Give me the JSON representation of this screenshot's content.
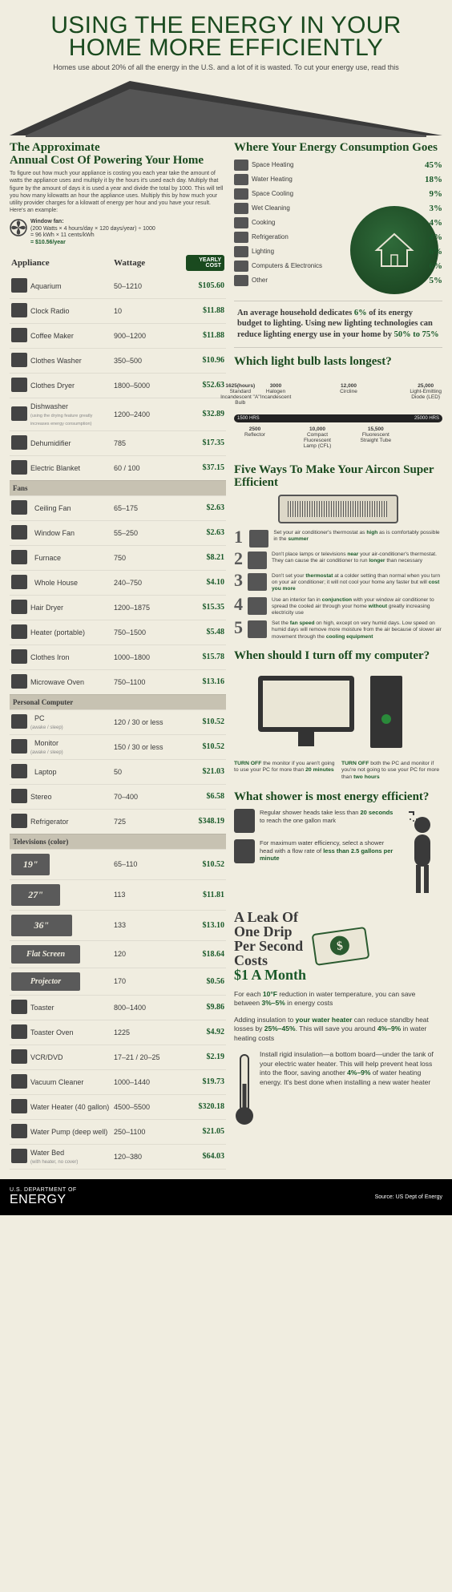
{
  "header": {
    "title_l1": "USING THE ENERGY IN YOUR",
    "title_l2": "HOME MORE EFFICIENTLY",
    "subtitle": "Homes use about 20% of all the energy in the U.S. and a lot of it is wasted. To cut your energy use, read this"
  },
  "colors": {
    "title": "#1a4a1f",
    "accent": "#1a5a2a",
    "background": "#f0ede0",
    "group_bg": "#c7c2b2",
    "dark": "#333333"
  },
  "annual_cost": {
    "heading_l1": "The Approximate",
    "heading_l2": "Annual Cost Of Powering Your Home",
    "intro": "To figure out how much your appliance is costing you each year take the amount of watts the appliance uses and multiply it by the hours it's used each day. Multiply that figure by the amount of days it is used a year and divide the total by 1000. This will tell you how many kilowatts an hour the appliance uses. Multiply this by how much your utility provider charges for a kilowatt of energy per hour and you have your result. Here's an example:",
    "example": {
      "label": "Window fan:",
      "line1": "(200 Watts × 4 hours/day × 120 days/year) ÷ 1000",
      "line2": "= 96 kWh × 11 cents/kWh",
      "total": "= $10.56/year"
    },
    "columns": {
      "appliance": "Appliance",
      "wattage": "Wattage",
      "cost": "YEARLY COST"
    },
    "rows": [
      {
        "name": "Aquarium",
        "watt": "50–1210",
        "cost": "$105.60"
      },
      {
        "name": "Clock Radio",
        "watt": "10",
        "cost": "$11.88"
      },
      {
        "name": "Coffee Maker",
        "watt": "900–1200",
        "cost": "$11.88"
      },
      {
        "name": "Clothes Washer",
        "watt": "350–500",
        "cost": "$10.96"
      },
      {
        "name": "Clothes Dryer",
        "watt": "1800–5000",
        "cost": "$52.63"
      },
      {
        "name": "Dishwasher",
        "watt": "1200–2400",
        "cost": "$32.89",
        "note": "(using the drying feature greatly increases energy consumption)"
      },
      {
        "name": "Dehumidifier",
        "watt": "785",
        "cost": "$17.35"
      },
      {
        "name": "Electric Blanket",
        "watt": "60 / 100",
        "cost": "$37.15"
      },
      {
        "group": "Fans"
      },
      {
        "name": "Ceiling Fan",
        "watt": "65–175",
        "cost": "$2.63",
        "indent": true
      },
      {
        "name": "Window Fan",
        "watt": "55–250",
        "cost": "$2.63",
        "indent": true
      },
      {
        "name": "Furnace",
        "watt": "750",
        "cost": "$8.21",
        "indent": true
      },
      {
        "name": "Whole House",
        "watt": "240–750",
        "cost": "$4.10",
        "indent": true
      },
      {
        "name": "Hair Dryer",
        "watt": "1200–1875",
        "cost": "$15.35"
      },
      {
        "name": "Heater (portable)",
        "watt": "750–1500",
        "cost": "$5.48"
      },
      {
        "name": "Clothes Iron",
        "watt": "1000–1800",
        "cost": "$15.78"
      },
      {
        "name": "Microwave Oven",
        "watt": "750–1100",
        "cost": "$13.16"
      },
      {
        "group": "Personal Computer"
      },
      {
        "name": "PC",
        "watt": "120 / 30 or less",
        "cost": "$10.52",
        "indent": true,
        "sub": "(awake / sleep)"
      },
      {
        "name": "Monitor",
        "watt": "150 / 30 or less",
        "cost": "$10.52",
        "indent": true,
        "sub": "(awake / sleep)"
      },
      {
        "name": "Laptop",
        "watt": "50",
        "cost": "$21.03",
        "indent": true
      },
      {
        "name": "Stereo",
        "watt": "70–400",
        "cost": "$6.58"
      },
      {
        "name": "Refrigerator",
        "watt": "725",
        "cost": "$348.19"
      },
      {
        "group": "Televisions (color)"
      },
      {
        "name": "19\"",
        "watt": "65–110",
        "cost": "$10.52",
        "tv": true
      },
      {
        "name": "27\"",
        "watt": "113",
        "cost": "$11.81",
        "tv": true
      },
      {
        "name": "36\"",
        "watt": "133",
        "cost": "$13.10",
        "tv": true
      },
      {
        "name": "Flat Screen",
        "watt": "120",
        "cost": "$18.64",
        "tv": true,
        "wide": true
      },
      {
        "name": "Projector",
        "watt": "170",
        "cost": "$0.56",
        "tv": true,
        "wide": true
      },
      {
        "name": "Toaster",
        "watt": "800–1400",
        "cost": "$9.86"
      },
      {
        "name": "Toaster Oven",
        "watt": "1225",
        "cost": "$4.92"
      },
      {
        "name": "VCR/DVD",
        "watt": "17–21 / 20–25",
        "cost": "$2.19"
      },
      {
        "name": "Vacuum Cleaner",
        "watt": "1000–1440",
        "cost": "$19.73"
      },
      {
        "name": "Water Heater (40 gallon)",
        "watt": "4500–5500",
        "cost": "$320.18"
      },
      {
        "name": "Water Pump (deep well)",
        "watt": "250–1100",
        "cost": "$21.05"
      },
      {
        "name": "Water Bed",
        "watt": "120–380",
        "cost": "$64.03",
        "sub": "(with heater, no cover)"
      }
    ]
  },
  "consumption": {
    "heading": "Where Your Energy Consumption Goes",
    "items": [
      {
        "label": "Space Heating",
        "pct": "45%"
      },
      {
        "label": "Water Heating",
        "pct": "18%"
      },
      {
        "label": "Space Cooling",
        "pct": "9%"
      },
      {
        "label": "Wet Cleaning",
        "pct": "3%"
      },
      {
        "label": "Cooking",
        "pct": "4%"
      },
      {
        "label": "Refrigeration",
        "pct": "4%"
      },
      {
        "label": "Lighting",
        "pct": "6%"
      },
      {
        "label": "Computers & Electronics",
        "pct": "6%"
      },
      {
        "label": "Other",
        "pct": "5%"
      }
    ]
  },
  "lighting_callout": {
    "text_parts": [
      "An average household dedicates ",
      "6%",
      " of its energy budget to lighting. Using new lighting technologies can reduce lighting energy use in your home by ",
      "50% to 75%"
    ]
  },
  "bulbs": {
    "heading": "Which light bulb lasts longest?",
    "scale_min": "1500 HRS",
    "scale_max": "25000 HRS",
    "points": [
      {
        "hrs": "1625(hours)",
        "type": "Standard Incandescent \"A\" Bulb",
        "pos": 3,
        "side": "top"
      },
      {
        "hrs": "2500",
        "type": "Reflector",
        "pos": 10,
        "side": "bot"
      },
      {
        "hrs": "3000",
        "type": "Halogen Incandescent",
        "pos": 20,
        "side": "top"
      },
      {
        "hrs": "10,000",
        "type": "Compact Fluorescent Lamp (CFL)",
        "pos": 40,
        "side": "bot"
      },
      {
        "hrs": "12,000",
        "type": "Circline",
        "pos": 55,
        "side": "top"
      },
      {
        "hrs": "15,500",
        "type": "Fluorescent Straight Tube",
        "pos": 68,
        "side": "bot"
      },
      {
        "hrs": "25,000",
        "type": "Light-Emitting Diode (LED)",
        "pos": 92,
        "side": "top"
      }
    ]
  },
  "aircon": {
    "heading": "Five Ways To Make Your Aircon Super Efficient",
    "tips": [
      {
        "n": "1",
        "text": "Set your air conditioner's thermostat as <b>high</b> as is comfortably possible in the <b>summer</b>"
      },
      {
        "n": "2",
        "text": "Don't place lamps or televisions <b>near</b> your air-conditioner's thermostat. They can cause the air conditioner to run <b>longer</b> than necessary"
      },
      {
        "n": "3",
        "text": "Don't set your <b>thermostat</b> at a colder setting than normal when you turn on your air conditioner; it will not cool your home any faster but will <b>cost you more</b>"
      },
      {
        "n": "4",
        "text": "Use an interior fan in <b>conjunction</b> with your window air conditioner to spread the cooled air through your home <b>without</b> greatly increasing electricity use"
      },
      {
        "n": "5",
        "text": "Set the <b>fan speed</b> on high, except on very humid days. Low speed on humid days will remove more moisture from the air because of slower air movement through the <b>cooling equipment</b>"
      }
    ]
  },
  "computer": {
    "heading": "When should I turn off my computer?",
    "left": "<b>TURN OFF</b> the monitor if you aren't going to use your PC for more than <b>20 minutes</b>",
    "right": "<b>TURN OFF</b> both the PC and monitor if you're not going to use your PC for more than <b>two hours</b>"
  },
  "shower": {
    "heading": "What shower is most energy efficient?",
    "row1": "Regular shower heads take less than <b>20 seconds</b> to reach the one gallon mark",
    "row2": "For maximum water efficiency, select a shower head with a flow rate of <b>less than 2.5 gallons per minute</b>"
  },
  "leak": {
    "l1": "A Leak Of",
    "l2": "One Drip",
    "l3": "Per Second",
    "l4": "Costs",
    "amount": "$1 A Month"
  },
  "facts": {
    "p1": "For each <b>10°F</b> reduction in water temperature, you can save between <b>3%–5%</b> in energy costs",
    "p2": "Adding insulation to <b>your water heater</b> can reduce standby heat losses by <b>25%–45%</b>. This will save you around <b>4%–9%</b> in water heating costs",
    "p3": "Install rigid insulation—a bottom board—under the tank of your electric water heater. This will help prevent heat loss into the floor, saving another <b>4%–9%</b> of water heating energy. It's best done when installing a new water heater"
  },
  "footer": {
    "dept": "U.S. DEPARTMENT OF",
    "energy": "ENERGY",
    "source": "Source: US Dept of Energy"
  }
}
